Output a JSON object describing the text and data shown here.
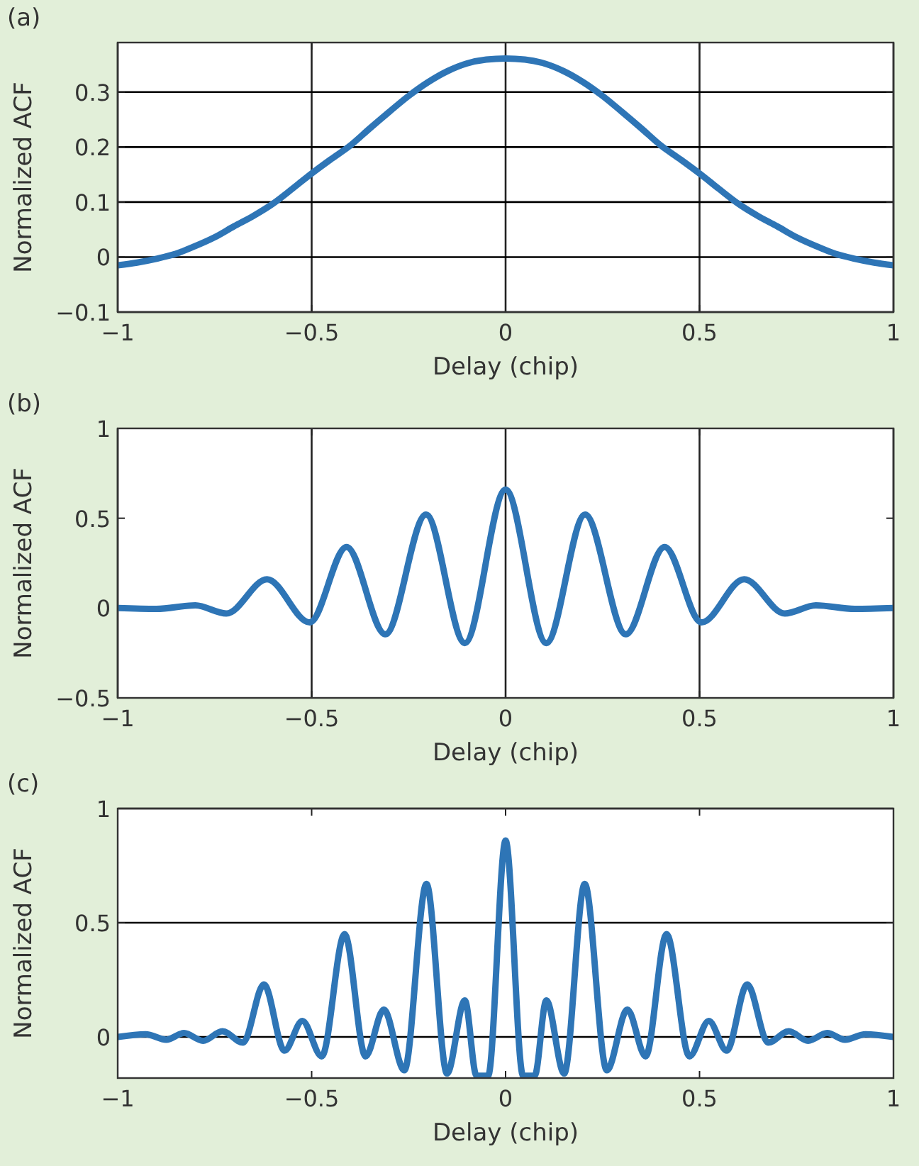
{
  "chart_data": [
    {
      "type": "line",
      "title": "(a)",
      "xlabel": "Delay (chip)",
      "ylabel": "Normalized ACF",
      "xlim": [
        -1,
        1
      ],
      "ylim": [
        -0.1,
        0.39
      ],
      "xticks": [
        -1,
        -0.5,
        0,
        0.5,
        1
      ],
      "yticks": [
        -0.1,
        0,
        0.1,
        0.2,
        0.3
      ],
      "grid": true,
      "x": [
        -1,
        -0.95,
        -0.9,
        -0.85,
        -0.8,
        -0.75,
        -0.7,
        -0.65,
        -0.6,
        -0.55,
        -0.5,
        -0.45,
        -0.4,
        -0.35,
        -0.3,
        -0.25,
        -0.2,
        -0.15,
        -0.1,
        -0.05,
        0,
        0.05,
        0.1,
        0.15,
        0.2,
        0.25,
        0.3,
        0.35,
        0.4,
        0.45,
        0.5,
        0.55,
        0.6,
        0.65,
        0.7,
        0.75,
        0.8,
        0.85,
        0.9,
        0.95,
        1
      ],
      "series": [
        {
          "color": "#2e75b6",
          "values": [
            -0.015,
            -0.01,
            -0.003,
            0.006,
            0.02,
            0.036,
            0.056,
            0.075,
            0.097,
            0.124,
            0.152,
            0.178,
            0.203,
            0.234,
            0.264,
            0.293,
            0.318,
            0.338,
            0.352,
            0.359,
            0.361,
            0.359,
            0.352,
            0.338,
            0.318,
            0.293,
            0.264,
            0.234,
            0.203,
            0.178,
            0.152,
            0.124,
            0.097,
            0.075,
            0.056,
            0.036,
            0.02,
            0.006,
            -0.003,
            -0.01,
            -0.015
          ]
        }
      ]
    },
    {
      "type": "line",
      "title": "(b)",
      "xlabel": "Delay (chip)",
      "ylabel": "Normalized ACF",
      "xlim": [
        -1,
        1
      ],
      "ylim": [
        -0.5,
        1
      ],
      "xticks": [
        -1,
        -0.5,
        0,
        0.5,
        1
      ],
      "yticks": [
        -0.5,
        0,
        0.5,
        1
      ],
      "grid": "x",
      "x": [
        -1,
        -0.9,
        -0.8,
        -0.72,
        -0.615,
        -0.505,
        -0.41,
        -0.31,
        -0.205,
        -0.105,
        0,
        0.105,
        0.205,
        0.31,
        0.41,
        0.505,
        0.615,
        0.72,
        0.8,
        0.9,
        1
      ],
      "series": [
        {
          "color": "#2e75b6",
          "values": [
            0,
            -0.005,
            0.015,
            -0.03,
            0.16,
            -0.08,
            0.34,
            -0.146,
            0.52,
            -0.195,
            0.66,
            -0.195,
            0.52,
            -0.146,
            0.34,
            -0.08,
            0.16,
            -0.03,
            0.015,
            -0.005,
            0
          ]
        }
      ]
    },
    {
      "type": "line",
      "title": "(c)",
      "xlabel": "Delay (chip)",
      "ylabel": "Normalized ACF",
      "xlim": [
        -1,
        1
      ],
      "ylim": [
        -0.18,
        1
      ],
      "xticks": [
        -1,
        -0.5,
        0,
        0.5,
        1
      ],
      "yticks": [
        0,
        0.5,
        1
      ],
      "grid": "y",
      "x": [
        -1,
        -0.928,
        -0.875,
        -0.829,
        -0.78,
        -0.73,
        -0.677,
        -0.623,
        -0.57,
        -0.524,
        -0.474,
        -0.415,
        -0.361,
        -0.314,
        -0.261,
        -0.204,
        -0.151,
        -0.105,
        -0.075,
        -0.045,
        0,
        0.045,
        0.075,
        0.105,
        0.151,
        0.204,
        0.261,
        0.314,
        0.361,
        0.415,
        0.474,
        0.524,
        0.57,
        0.623,
        0.677,
        0.73,
        0.78,
        0.829,
        0.875,
        0.928,
        1
      ],
      "series": [
        {
          "color": "#2e75b6",
          "values": [
            0,
            0.012,
            -0.012,
            0.017,
            -0.017,
            0.025,
            -0.025,
            0.23,
            -0.06,
            0.07,
            -0.085,
            0.45,
            -0.085,
            0.12,
            -0.146,
            0.67,
            -0.16,
            0.16,
            -0.17,
            -0.17,
            0.86,
            -0.17,
            -0.17,
            0.16,
            -0.16,
            0.67,
            -0.146,
            0.12,
            -0.085,
            0.45,
            -0.085,
            0.07,
            -0.06,
            0.23,
            -0.025,
            0.025,
            -0.017,
            0.017,
            -0.012,
            0.012,
            0
          ]
        }
      ]
    }
  ]
}
